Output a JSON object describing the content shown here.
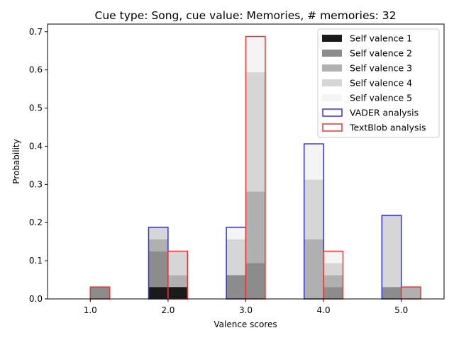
{
  "chart_data": {
    "type": "bar",
    "title": "Cue type: Song, cue value: Memories, # memories: 32",
    "xlabel": "Valence scores",
    "ylabel": "Probability",
    "categories": [
      "1.0",
      "2.0",
      "3.0",
      "4.0",
      "5.0"
    ],
    "x": [
      1,
      2,
      3,
      4,
      5
    ],
    "xlim": [
      0.45,
      5.55
    ],
    "ylim": [
      0,
      0.72
    ],
    "yticks": [
      0.0,
      0.1,
      0.2,
      0.3,
      0.4,
      0.5,
      0.6,
      0.7
    ],
    "ytick_labels": [
      "0.0",
      "0.1",
      "0.2",
      "0.3",
      "0.4",
      "0.5",
      "0.6",
      "0.7"
    ],
    "legend_position": "top-right",
    "stacked_groups": [
      {
        "name": "VADER analysis",
        "edge_color": "#3333dd",
        "offset": -0.125,
        "series": [
          {
            "name": "Self valence 1",
            "color": "#1a1a1a",
            "values": [
              0,
              0.03125,
              0,
              0,
              0
            ]
          },
          {
            "name": "Self valence 2",
            "color": "#8c8c8c",
            "values": [
              0,
              0.09375,
              0.0625,
              0,
              0.03125
            ]
          },
          {
            "name": "Self valence 3",
            "color": "#b0b0b0",
            "values": [
              0,
              0.03125,
              0,
              0.15625,
              0
            ]
          },
          {
            "name": "Self valence 4",
            "color": "#d6d6d6",
            "values": [
              0,
              0.03125,
              0.09375,
              0.15625,
              0.1875
            ]
          },
          {
            "name": "Self valence 5",
            "color": "#f4f4f4",
            "values": [
              0,
              0,
              0.03125,
              0.09375,
              0
            ]
          }
        ]
      },
      {
        "name": "TextBlob analysis",
        "edge_color": "#ee3333",
        "offset": 0.125,
        "series": [
          {
            "name": "Self valence 1",
            "color": "#1a1a1a",
            "values": [
              0,
              0.03125,
              0,
              0,
              0
            ]
          },
          {
            "name": "Self valence 2",
            "color": "#8c8c8c",
            "values": [
              0.03125,
              0,
              0.09375,
              0.03125,
              0
            ]
          },
          {
            "name": "Self valence 3",
            "color": "#b0b0b0",
            "values": [
              0,
              0.03125,
              0.1875,
              0.03125,
              0.03125
            ]
          },
          {
            "name": "Self valence 4",
            "color": "#d6d6d6",
            "values": [
              0,
              0.0625,
              0.3125,
              0.03125,
              0
            ]
          },
          {
            "name": "Self valence 5",
            "color": "#f4f4f4",
            "values": [
              0,
              0,
              0.09375,
              0.03125,
              0
            ]
          }
        ]
      }
    ],
    "legend": [
      {
        "label": "Self valence 1",
        "kind": "fill",
        "color": "#1a1a1a"
      },
      {
        "label": "Self valence 2",
        "kind": "fill",
        "color": "#8c8c8c"
      },
      {
        "label": "Self valence 3",
        "kind": "fill",
        "color": "#b0b0b0"
      },
      {
        "label": "Self valence 4",
        "kind": "fill",
        "color": "#d6d6d6"
      },
      {
        "label": "Self valence 5",
        "kind": "fill",
        "color": "#f4f4f4"
      },
      {
        "label": "VADER analysis",
        "kind": "edge",
        "color": "#3333dd"
      },
      {
        "label": "TextBlob analysis",
        "kind": "edge",
        "color": "#ee3333"
      }
    ]
  }
}
